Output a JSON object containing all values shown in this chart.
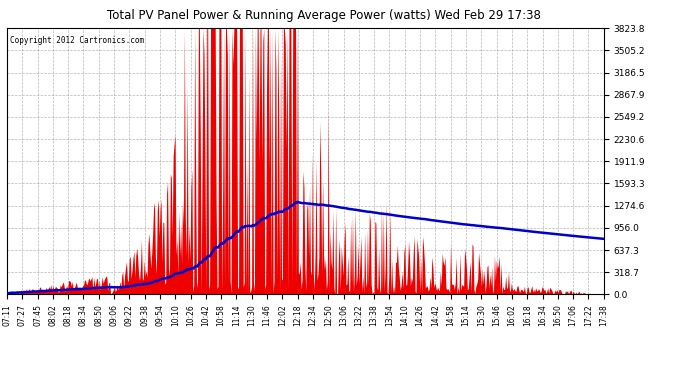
{
  "title": "Total PV Panel Power & Running Average Power (watts) Wed Feb 29 17:38",
  "copyright": "Copyright 2012 Cartronics.com",
  "background_color": "#ffffff",
  "plot_bg_color": "#ffffff",
  "grid_color": "#888888",
  "bar_color": "#ee0000",
  "line_color": "#0000cc",
  "ymax": 3823.8,
  "ymin": 0.0,
  "yticks": [
    0.0,
    318.7,
    637.3,
    956.0,
    1274.6,
    1593.3,
    1911.9,
    2230.6,
    2549.2,
    2867.9,
    3186.5,
    3505.2,
    3823.8
  ],
  "x_labels": [
    "07:11",
    "07:27",
    "07:45",
    "08:02",
    "08:18",
    "08:34",
    "08:50",
    "09:06",
    "09:22",
    "09:38",
    "09:54",
    "10:10",
    "10:26",
    "10:42",
    "10:58",
    "11:14",
    "11:30",
    "11:46",
    "12:02",
    "12:18",
    "12:34",
    "12:50",
    "13:06",
    "13:22",
    "13:38",
    "13:54",
    "14:10",
    "14:26",
    "14:42",
    "14:58",
    "15:14",
    "15:30",
    "15:46",
    "16:02",
    "16:18",
    "16:34",
    "16:50",
    "17:06",
    "17:22",
    "17:38"
  ],
  "num_points": 640
}
